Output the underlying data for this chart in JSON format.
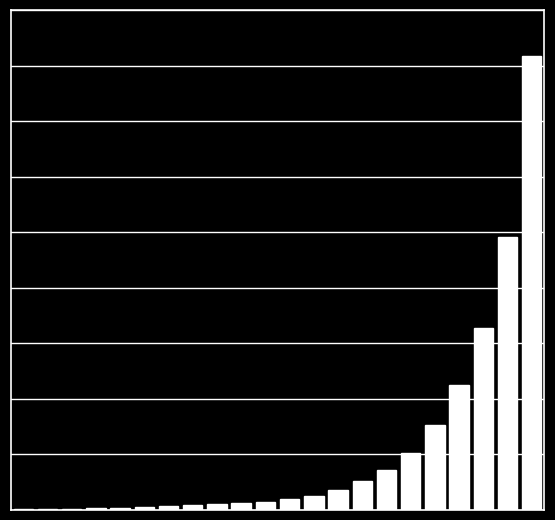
{
  "values": [
    30,
    50,
    80,
    120,
    170,
    230,
    300,
    380,
    470,
    570,
    700,
    900,
    1200,
    1700,
    2500,
    3500,
    5000,
    7500,
    11000,
    16000,
    24000,
    40000
  ],
  "bar_color": "#ffffff",
  "background_color": "#000000",
  "grid_color": "#ffffff",
  "ylim": [
    0,
    44000
  ],
  "n_gridlines": 9,
  "grid_linewidth": 1.0,
  "bar_width": 0.8
}
